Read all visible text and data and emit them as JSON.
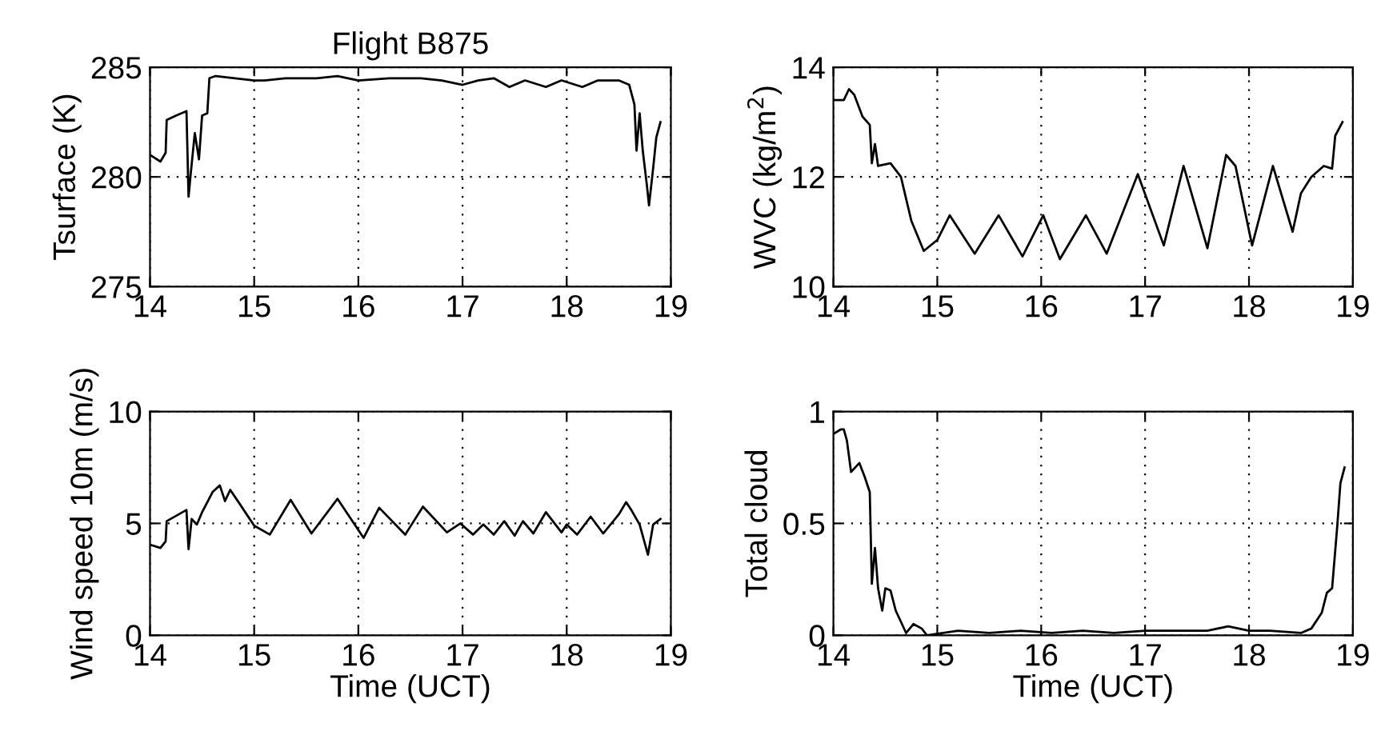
{
  "chart_data": [
    {
      "type": "line",
      "title": "Flight B875",
      "ylabel": "Tsurface (K)",
      "xlim": [
        14,
        19
      ],
      "ylim": [
        275,
        285
      ],
      "xticks": [
        14,
        15,
        16,
        17,
        18,
        19
      ],
      "yticks": [
        275,
        280,
        285
      ],
      "grid": true,
      "legend": false,
      "x": [
        14,
        14.1,
        14.15,
        14.16,
        14.25,
        14.35,
        14.37,
        14.39,
        14.43,
        14.47,
        14.5,
        14.55,
        14.57,
        14.63,
        15,
        15.1,
        15.3,
        15.6,
        15.8,
        16,
        16.3,
        16.6,
        16.8,
        17,
        17.15,
        17.3,
        17.45,
        17.6,
        17.8,
        17.95,
        18.15,
        18.3,
        18.5,
        18.6,
        18.65,
        18.67,
        18.7,
        18.73,
        18.77,
        18.79,
        18.83,
        18.86,
        18.9
      ],
      "series": [
        {
          "color": "#000000",
          "values": [
            281.0,
            280.7,
            281.1,
            282.6,
            282.8,
            283.0,
            279.1,
            280.1,
            282.0,
            280.8,
            282.8,
            282.9,
            284.5,
            284.6,
            284.4,
            284.4,
            284.5,
            284.5,
            284.6,
            284.4,
            284.5,
            284.5,
            284.4,
            284.2,
            284.4,
            284.5,
            284.1,
            284.4,
            284.1,
            284.4,
            284.1,
            284.4,
            284.4,
            284.2,
            283.3,
            281.2,
            282.9,
            281.2,
            279.6,
            278.7,
            280.4,
            281.8,
            282.5
          ]
        }
      ]
    },
    {
      "type": "line",
      "ylabel": "WVC (kg/m$^{2}$)",
      "xlim": [
        14,
        19
      ],
      "ylim": [
        10,
        14
      ],
      "xticks": [
        14,
        15,
        16,
        17,
        18,
        19
      ],
      "yticks": [
        10,
        12,
        14
      ],
      "grid": true,
      "legend": false,
      "x": [
        14,
        14.1,
        14.15,
        14.2,
        14.28,
        14.35,
        14.37,
        14.4,
        14.43,
        14.55,
        14.65,
        14.75,
        14.87,
        15,
        15.12,
        15.36,
        15.59,
        15.82,
        16.02,
        16.18,
        16.43,
        16.63,
        16.93,
        17.18,
        17.37,
        17.6,
        17.78,
        17.87,
        18.03,
        18.23,
        18.42,
        18.5,
        18.6,
        18.72,
        18.8,
        18.83,
        18.9
      ],
      "series": [
        {
          "color": "#000000",
          "values": [
            13.4,
            13.4,
            13.6,
            13.5,
            13.1,
            12.95,
            12.25,
            12.6,
            12.2,
            12.25,
            12.0,
            11.2,
            10.65,
            10.85,
            11.3,
            10.6,
            11.3,
            10.55,
            11.3,
            10.5,
            11.3,
            10.6,
            12.05,
            10.75,
            12.2,
            10.7,
            12.4,
            12.2,
            10.75,
            12.2,
            11.0,
            11.7,
            12.0,
            12.2,
            12.15,
            12.75,
            13.0
          ]
        }
      ]
    },
    {
      "type": "line",
      "ylabel": "Wind speed 10m (m/s)",
      "xlabel": "Time (UCT)",
      "xlim": [
        14,
        19
      ],
      "ylim": [
        0,
        10
      ],
      "xticks": [
        14,
        15,
        16,
        17,
        18,
        19
      ],
      "yticks": [
        0,
        5,
        10
      ],
      "grid": true,
      "legend": false,
      "x": [
        14,
        14.1,
        14.15,
        14.16,
        14.35,
        14.37,
        14.4,
        14.45,
        14.5,
        14.6,
        14.67,
        14.72,
        14.77,
        14.85,
        15.0,
        15.15,
        15.35,
        15.55,
        15.8,
        16.05,
        16.2,
        16.45,
        16.62,
        16.85,
        16.98,
        17.1,
        17.2,
        17.3,
        17.4,
        17.5,
        17.58,
        17.68,
        17.8,
        17.95,
        18.0,
        18.1,
        18.23,
        18.35,
        18.5,
        18.57,
        18.62,
        18.7,
        18.78,
        18.83,
        18.9
      ],
      "series": [
        {
          "color": "#000000",
          "values": [
            4.05,
            3.9,
            4.2,
            5.1,
            5.6,
            3.85,
            5.2,
            4.95,
            5.5,
            6.4,
            6.7,
            6.0,
            6.5,
            5.95,
            4.9,
            4.5,
            6.05,
            4.55,
            6.1,
            4.35,
            5.7,
            4.5,
            5.75,
            4.6,
            5.0,
            4.5,
            4.95,
            4.5,
            5.1,
            4.45,
            5.1,
            4.55,
            5.5,
            4.6,
            4.95,
            4.5,
            5.3,
            4.55,
            5.4,
            5.95,
            5.6,
            4.95,
            3.6,
            4.95,
            5.2
          ]
        }
      ]
    },
    {
      "type": "line",
      "ylabel": "Total cloud",
      "xlabel": "Time (UCT)",
      "xlim": [
        14,
        19
      ],
      "ylim": [
        0,
        1
      ],
      "xticks": [
        14,
        15,
        16,
        17,
        18,
        19
      ],
      "yticks": [
        0,
        0.5,
        1
      ],
      "grid": true,
      "legend": false,
      "x": [
        14,
        14.07,
        14.1,
        14.13,
        14.17,
        14.25,
        14.3,
        14.35,
        14.37,
        14.4,
        14.43,
        14.47,
        14.5,
        14.55,
        14.6,
        14.7,
        14.77,
        14.85,
        14.9,
        15.2,
        15.5,
        15.8,
        16.1,
        16.4,
        16.7,
        17.0,
        17.3,
        17.6,
        17.8,
        18.0,
        18.2,
        18.5,
        18.6,
        18.7,
        18.75,
        18.8,
        18.85,
        18.88,
        18.92
      ],
      "series": [
        {
          "color": "#000000",
          "values": [
            0.9,
            0.92,
            0.92,
            0.87,
            0.73,
            0.77,
            0.71,
            0.64,
            0.23,
            0.39,
            0.21,
            0.11,
            0.21,
            0.2,
            0.11,
            0.01,
            0.05,
            0.03,
            0.0,
            0.02,
            0.01,
            0.02,
            0.01,
            0.02,
            0.01,
            0.02,
            0.02,
            0.02,
            0.04,
            0.02,
            0.02,
            0.01,
            0.03,
            0.1,
            0.19,
            0.21,
            0.49,
            0.68,
            0.75
          ]
        }
      ]
    }
  ]
}
